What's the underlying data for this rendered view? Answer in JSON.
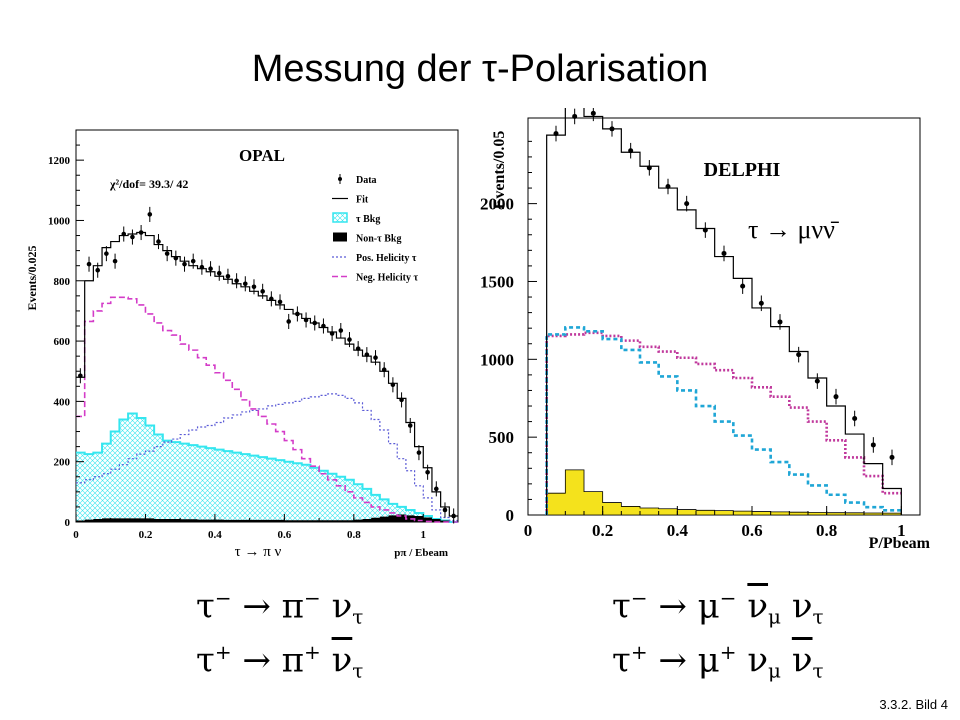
{
  "slide": {
    "title": "Messung der τ-Polarisation",
    "ref": "3.3.2. Bild 4",
    "eq_left_1": "τ⁻ → π⁻ ν_τ",
    "eq_left_2": "τ⁺ → π⁺ ν̄_τ",
    "eq_right_1": "τ⁻ → μ⁻ ν̄_μ ν_τ",
    "eq_right_2": "τ⁺ → μ⁺ ν_μ ν̄_τ"
  },
  "chart_data": [
    {
      "type": "line",
      "title": "OPAL",
      "ylabel": "Events/0.025",
      "xlabel": "pπ / Ebeam",
      "xlim": [
        0,
        1.1
      ],
      "ylim": [
        0,
        1300
      ],
      "xticks": [
        "0",
        "0.2",
        "0.4",
        "0.6",
        "0.8",
        "1"
      ],
      "yticks": [
        "0",
        "200",
        "400",
        "600",
        "800",
        "1000",
        "1200"
      ],
      "annotations": [
        "χ²/dof= 39.3/ 42",
        "τ → π ν"
      ],
      "legend": [
        "Data",
        "Fit",
        "τ Bkg",
        "Non-τ Bkg",
        "Pos. Helicity τ",
        "Neg. Helicity τ"
      ],
      "colors": {
        "data": "#000000",
        "fit": "#000000",
        "tau_bkg": "#35e6ef",
        "non_tau_bkg": "#000000",
        "pos_helicity": "#5b5bd6",
        "neg_helicity": "#d43cc8"
      },
      "x": [
        0.0125,
        0.0375,
        0.0625,
        0.0875,
        0.1125,
        0.1375,
        0.1625,
        0.1875,
        0.2125,
        0.2375,
        0.2625,
        0.2875,
        0.3125,
        0.3375,
        0.3625,
        0.3875,
        0.4125,
        0.4375,
        0.4625,
        0.4875,
        0.5125,
        0.5375,
        0.5625,
        0.5875,
        0.6125,
        0.6375,
        0.6625,
        0.6875,
        0.7125,
        0.7375,
        0.7625,
        0.7875,
        0.8125,
        0.8375,
        0.8625,
        0.8875,
        0.9125,
        0.9375,
        0.9625,
        0.9875,
        1.0125,
        1.0375,
        1.0625,
        1.0875
      ],
      "series": [
        {
          "name": "Data",
          "values": [
            485,
            855,
            835,
            890,
            865,
            955,
            945,
            960,
            1020,
            930,
            890,
            875,
            855,
            865,
            845,
            840,
            825,
            815,
            800,
            790,
            780,
            765,
            740,
            730,
            665,
            690,
            670,
            660,
            650,
            625,
            635,
            605,
            575,
            555,
            545,
            505,
            455,
            405,
            320,
            230,
            165,
            110,
            40,
            20
          ]
        },
        {
          "name": "Fit",
          "values": [
            480,
            800,
            850,
            910,
            930,
            950,
            955,
            960,
            950,
            920,
            900,
            880,
            865,
            850,
            840,
            830,
            815,
            805,
            790,
            780,
            765,
            750,
            735,
            720,
            705,
            690,
            675,
            660,
            645,
            630,
            610,
            590,
            570,
            550,
            530,
            500,
            460,
            410,
            330,
            250,
            180,
            100,
            50,
            20
          ]
        },
        {
          "name": "τ Bkg",
          "values": [
            230,
            225,
            230,
            260,
            300,
            340,
            360,
            345,
            320,
            290,
            270,
            265,
            260,
            255,
            250,
            245,
            240,
            235,
            230,
            225,
            220,
            215,
            210,
            205,
            200,
            195,
            190,
            180,
            170,
            160,
            150,
            140,
            125,
            110,
            90,
            75,
            60,
            50,
            40,
            30,
            20,
            10,
            5,
            0
          ]
        },
        {
          "name": "Non-τ Bkg",
          "values": [
            5,
            8,
            10,
            12,
            12,
            12,
            12,
            12,
            12,
            10,
            10,
            10,
            9,
            9,
            8,
            8,
            8,
            7,
            7,
            7,
            7,
            7,
            7,
            7,
            6,
            6,
            6,
            6,
            6,
            6,
            6,
            6,
            8,
            10,
            14,
            18,
            22,
            25,
            22,
            20,
            15,
            10,
            5,
            0
          ]
        },
        {
          "name": "Pos. Helicity τ",
          "values": [
            130,
            140,
            150,
            160,
            175,
            190,
            210,
            225,
            235,
            250,
            265,
            275,
            290,
            305,
            315,
            320,
            330,
            345,
            355,
            365,
            370,
            375,
            385,
            390,
            395,
            400,
            410,
            415,
            420,
            425,
            420,
            410,
            395,
            370,
            340,
            305,
            260,
            210,
            170,
            120,
            80,
            40,
            15,
            5
          ]
        },
        {
          "name": "Neg. Helicity τ",
          "values": [
            350,
            665,
            700,
            725,
            745,
            745,
            740,
            720,
            690,
            660,
            635,
            620,
            590,
            570,
            545,
            520,
            495,
            470,
            440,
            405,
            375,
            350,
            325,
            300,
            270,
            240,
            210,
            185,
            160,
            140,
            120,
            100,
            80,
            65,
            50,
            40,
            30,
            20,
            10,
            5,
            2,
            0,
            0,
            0
          ]
        }
      ]
    },
    {
      "type": "line",
      "title": "DELPHI",
      "ylabel": "Events/0.05",
      "xlabel": "P/Pbeam",
      "xlim": [
        0,
        1.05
      ],
      "ylim": [
        0,
        2550
      ],
      "xticks": [
        "0",
        "0.2",
        "0.4",
        "0.6",
        "0.8",
        "1"
      ],
      "yticks": [
        "0",
        "500",
        "1000",
        "1500",
        "2000"
      ],
      "annotations": [
        "τ → μνν̄"
      ],
      "colors": {
        "data": "#000000",
        "fit": "#000000",
        "cyan_dashed": "#1fa6d6",
        "magenta_dotted": "#c0389c",
        "yellow_fill": "#f4e21c"
      },
      "x": [
        0.075,
        0.125,
        0.175,
        0.225,
        0.275,
        0.325,
        0.375,
        0.425,
        0.475,
        0.525,
        0.575,
        0.625,
        0.675,
        0.725,
        0.775,
        0.825,
        0.875,
        0.925,
        0.975
      ],
      "series": [
        {
          "name": "Data",
          "values": [
            2450,
            2560,
            2580,
            2480,
            2340,
            2230,
            2110,
            2000,
            1830,
            1680,
            1470,
            1360,
            1240,
            1030,
            860,
            760,
            620,
            450,
            370
          ]
        },
        {
          "name": "Fit",
          "values": [
            2440,
            2640,
            2560,
            2480,
            2330,
            2240,
            2100,
            1960,
            1840,
            1660,
            1520,
            1330,
            1210,
            1050,
            880,
            700,
            520,
            330,
            170
          ]
        },
        {
          "name": "Cyan",
          "values": [
            1160,
            1205,
            1180,
            1130,
            1060,
            980,
            890,
            800,
            700,
            600,
            510,
            420,
            340,
            260,
            190,
            130,
            80,
            50,
            30
          ]
        },
        {
          "name": "Magenta",
          "values": [
            1150,
            1160,
            1170,
            1150,
            1120,
            1080,
            1050,
            1010,
            970,
            930,
            880,
            820,
            760,
            690,
            600,
            480,
            370,
            250,
            140
          ]
        },
        {
          "name": "Yellow",
          "values": [
            140,
            290,
            150,
            80,
            55,
            45,
            40,
            35,
            30,
            28,
            25,
            22,
            20,
            18,
            16,
            15,
            14,
            13,
            12
          ]
        }
      ]
    }
  ]
}
